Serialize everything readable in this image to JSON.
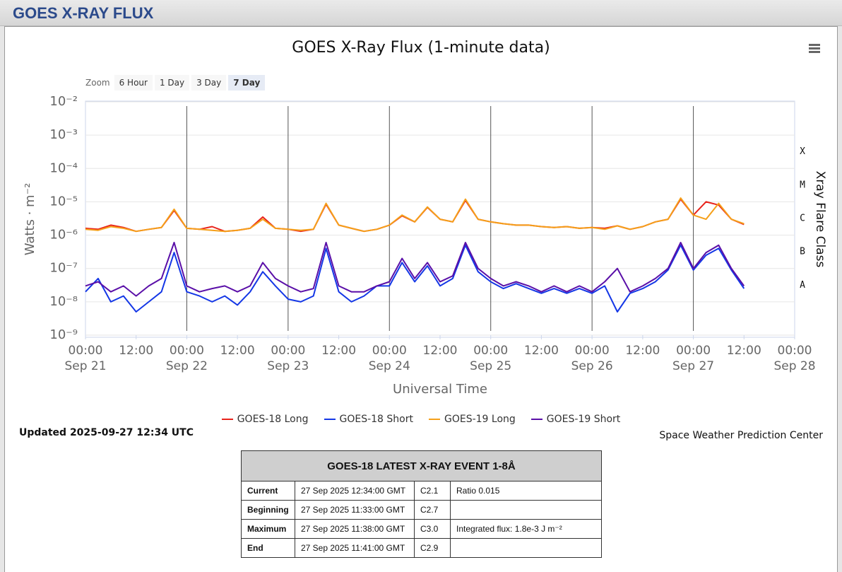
{
  "header": {
    "title": "GOES X-RAY FLUX"
  },
  "chart_data": {
    "type": "line",
    "title": "GOES X-Ray Flux (1-minute data)",
    "zoom": {
      "label": "Zoom",
      "buttons": [
        "6 Hour",
        "1 Day",
        "3 Day",
        "7 Day"
      ],
      "selected": 3
    },
    "x_label": "Universal Time",
    "y_label": "Watts · m⁻²",
    "y2_label": "Xray Flare Class",
    "log_y": true,
    "grid": true,
    "xlim": [
      0,
      168
    ],
    "xticks": [
      {
        "value": 0,
        "label": "00:00\nSep 21"
      },
      {
        "value": 12,
        "label": "12:00"
      },
      {
        "value": 24,
        "label": "00:00\nSep 22"
      },
      {
        "value": 36,
        "label": "12:00"
      },
      {
        "value": 48,
        "label": "00:00\nSep 23"
      },
      {
        "value": 60,
        "label": "12:00"
      },
      {
        "value": 72,
        "label": "00:00\nSep 24"
      },
      {
        "value": 84,
        "label": "12:00"
      },
      {
        "value": 96,
        "label": "00:00\nSep 25"
      },
      {
        "value": 108,
        "label": "12:00"
      },
      {
        "value": 120,
        "label": "00:00\nSep 26"
      },
      {
        "value": 132,
        "label": "12:00"
      },
      {
        "value": 144,
        "label": "00:00\nSep 27"
      },
      {
        "value": 156,
        "label": "12:00"
      },
      {
        "value": 168,
        "label": "00:00\nSep 28"
      }
    ],
    "ylim": [
      1e-09,
      0.01
    ],
    "yticks": [
      {
        "value": 0.01,
        "label": "10⁻²"
      },
      {
        "value": 0.001,
        "label": "10⁻³"
      },
      {
        "value": 0.0001,
        "label": "10⁻⁴"
      },
      {
        "value": 1e-05,
        "label": "10⁻⁵"
      },
      {
        "value": 1e-06,
        "label": "10⁻⁶"
      },
      {
        "value": 1e-07,
        "label": "10⁻⁷"
      },
      {
        "value": 1e-08,
        "label": "10⁻⁸"
      },
      {
        "value": 1e-09,
        "label": "10⁻⁹"
      }
    ],
    "y2lim": [
      1e-09,
      0.01
    ],
    "y2ticks": [
      {
        "value": 0.000316,
        "label": "X"
      },
      {
        "value": 3.16e-05,
        "label": "M"
      },
      {
        "value": 3.16e-06,
        "label": "C"
      },
      {
        "value": 3.16e-07,
        "label": "B"
      },
      {
        "value": 3.16e-08,
        "label": "A"
      }
    ],
    "x": [
      0,
      3,
      6,
      9,
      12,
      15,
      18,
      21,
      24,
      27,
      30,
      33,
      36,
      39,
      42,
      45,
      48,
      51,
      54,
      57,
      60,
      63,
      66,
      69,
      72,
      75,
      78,
      81,
      84,
      87,
      90,
      93,
      96,
      99,
      102,
      105,
      108,
      111,
      114,
      117,
      120,
      123,
      126,
      129,
      132,
      135,
      138,
      141,
      144,
      147,
      150,
      153,
      156
    ],
    "series": [
      {
        "name": "GOES-18 Long",
        "color": "#e8231b",
        "values": [
          1.6e-06,
          1.5e-06,
          2e-06,
          1.7e-06,
          1.3e-06,
          1.5e-06,
          1.7e-06,
          5.5e-06,
          1.6e-06,
          1.5e-06,
          1.8e-06,
          1.3e-06,
          1.4e-06,
          1.6e-06,
          3.5e-06,
          1.6e-06,
          1.5e-06,
          1.3e-06,
          1.5e-06,
          8.5e-06,
          2e-06,
          1.6e-06,
          1.3e-06,
          1.5e-06,
          2e-06,
          3.8e-06,
          2.5e-06,
          6.8e-06,
          3e-06,
          2.5e-06,
          1.1e-05,
          3e-06,
          2.5e-06,
          2.2e-06,
          2e-06,
          2e-06,
          1.8e-06,
          1.7e-06,
          1.8e-06,
          1.6e-06,
          1.7e-06,
          1.6e-06,
          1.9e-06,
          1.5e-06,
          1.8e-06,
          2.5e-06,
          3e-06,
          1.2e-05,
          4e-06,
          1e-05,
          8e-06,
          3e-06,
          2.1e-06
        ]
      },
      {
        "name": "GOES-18 Short",
        "color": "#1437e6",
        "values": [
          2e-08,
          5e-08,
          1e-08,
          1.5e-08,
          5e-09,
          1e-08,
          2e-08,
          3e-07,
          2e-08,
          1.5e-08,
          1e-08,
          1.5e-08,
          8e-09,
          2e-08,
          8e-08,
          3e-08,
          1.2e-08,
          1e-08,
          1.5e-08,
          4e-07,
          2e-08,
          1e-08,
          1.5e-08,
          3e-08,
          3e-08,
          1.5e-07,
          4e-08,
          1.2e-07,
          3e-08,
          5e-08,
          5e-07,
          8e-08,
          4e-08,
          2.5e-08,
          3.5e-08,
          2.5e-08,
          1.8e-08,
          2.5e-08,
          1.8e-08,
          2.5e-08,
          1.8e-08,
          3e-08,
          5e-09,
          1.8e-08,
          2.5e-08,
          4e-08,
          9e-08,
          5e-07,
          9e-08,
          2.5e-07,
          4e-07,
          9e-08,
          2.5e-08
        ]
      },
      {
        "name": "GOES-19 Long",
        "color": "#f5a01a",
        "values": [
          1.5e-06,
          1.4e-06,
          1.8e-06,
          1.6e-06,
          1.3e-06,
          1.5e-06,
          1.7e-06,
          6e-06,
          1.6e-06,
          1.5e-06,
          1.4e-06,
          1.3e-06,
          1.4e-06,
          1.6e-06,
          3e-06,
          1.6e-06,
          1.5e-06,
          1.4e-06,
          1.5e-06,
          9e-06,
          2e-06,
          1.6e-06,
          1.3e-06,
          1.5e-06,
          2e-06,
          4e-06,
          2.5e-06,
          7e-06,
          3e-06,
          2.5e-06,
          1.2e-05,
          3e-06,
          2.5e-06,
          2.2e-06,
          2e-06,
          2e-06,
          1.8e-06,
          1.7e-06,
          1.8e-06,
          1.6e-06,
          1.7e-06,
          1.5e-06,
          1.9e-06,
          1.5e-06,
          1.8e-06,
          2.5e-06,
          3e-06,
          1.3e-05,
          4e-06,
          3e-06,
          9e-06,
          3e-06,
          2.2e-06
        ]
      },
      {
        "name": "GOES-19 Short",
        "color": "#5a0fa8",
        "values": [
          3e-08,
          4e-08,
          2e-08,
          3e-08,
          1.5e-08,
          3e-08,
          5e-08,
          6e-07,
          3e-08,
          2e-08,
          2.5e-08,
          3e-08,
          2e-08,
          3e-08,
          1.5e-07,
          5e-08,
          3e-08,
          2e-08,
          2.5e-08,
          6e-07,
          3e-08,
          2e-08,
          2e-08,
          3e-08,
          4e-08,
          2e-07,
          5e-08,
          1.5e-07,
          4e-08,
          6e-08,
          6e-07,
          1e-07,
          5e-08,
          3e-08,
          4e-08,
          3e-08,
          2e-08,
          3e-08,
          2e-08,
          3e-08,
          2e-08,
          4e-08,
          1e-07,
          2e-08,
          3e-08,
          5e-08,
          1e-07,
          6e-07,
          1e-07,
          3e-07,
          5e-07,
          1e-07,
          3e-08
        ]
      }
    ]
  },
  "updated": "Updated 2025-09-27 12:34 UTC",
  "credit": "Space Weather Prediction Center",
  "event_table": {
    "title": "GOES-18 LATEST X-RAY EVENT 1-8Å",
    "rows": [
      [
        "Current",
        "27 Sep 2025 12:34:00 GMT",
        "C2.1",
        "Ratio 0.015"
      ],
      [
        "Beginning",
        "27 Sep 2025 11:33:00 GMT",
        "C2.7"
      ],
      [
        "Maximum",
        "27 Sep 2025 11:38:00 GMT",
        "C3.0",
        "Integrated flux: 1.8e-3 J m⁻²"
      ],
      [
        "End",
        "27 Sep 2025 11:41:00 GMT",
        "C2.9"
      ]
    ]
  }
}
